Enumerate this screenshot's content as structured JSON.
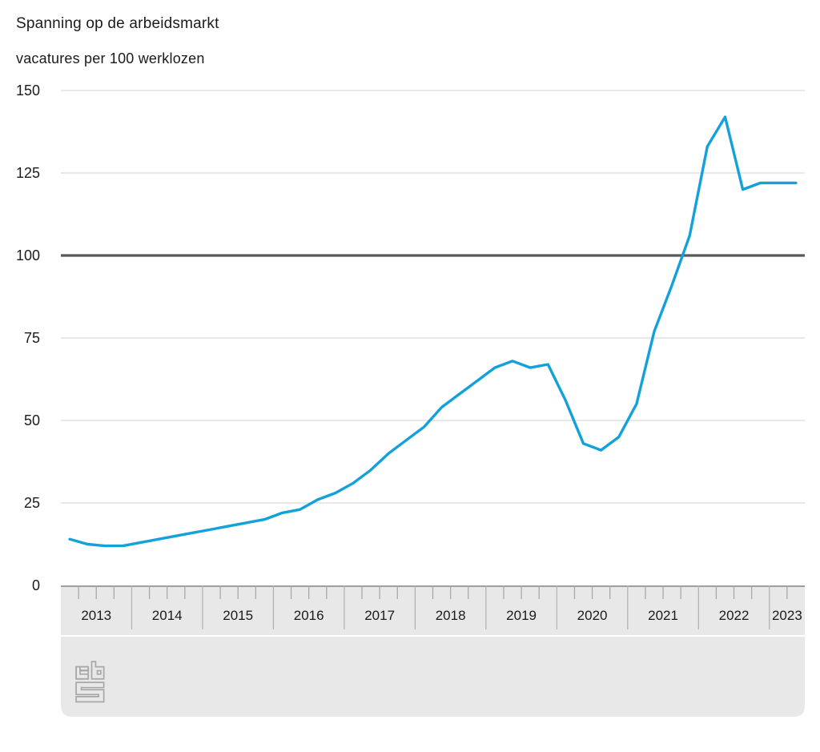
{
  "header": {
    "title": "Spanning op de arbeidsmarkt",
    "subtitle": "vacatures per 100 werklozen"
  },
  "chart_data": {
    "type": "line",
    "title": "Spanning op de arbeidsmarkt",
    "subtitle": "vacatures per 100 werklozen",
    "ylabel": "vacatures per 100 werklozen",
    "xlabel": "",
    "ylim": [
      0,
      150
    ],
    "y_ticks": [
      0,
      25,
      50,
      75,
      100,
      125,
      150
    ],
    "grid": true,
    "legend_position": "none",
    "reference_line": {
      "value": 100,
      "label": "100"
    },
    "x_years": [
      "2013",
      "2014",
      "2015",
      "2016",
      "2017",
      "2018",
      "2019",
      "2020",
      "2021",
      "2022",
      "2023"
    ],
    "quarters_in_last_year": 2,
    "periods": [
      "2013 Q1",
      "2013 Q2",
      "2013 Q3",
      "2013 Q4",
      "2014 Q1",
      "2014 Q2",
      "2014 Q3",
      "2014 Q4",
      "2015 Q1",
      "2015 Q2",
      "2015 Q3",
      "2015 Q4",
      "2016 Q1",
      "2016 Q2",
      "2016 Q3",
      "2016 Q4",
      "2017 Q1",
      "2017 Q2",
      "2017 Q3",
      "2017 Q4",
      "2018 Q1",
      "2018 Q2",
      "2018 Q3",
      "2018 Q4",
      "2019 Q1",
      "2019 Q2",
      "2019 Q3",
      "2019 Q4",
      "2020 Q1",
      "2020 Q2",
      "2020 Q3",
      "2020 Q4",
      "2021 Q1",
      "2021 Q2",
      "2021 Q3",
      "2021 Q4",
      "2022 Q1",
      "2022 Q2",
      "2022 Q3",
      "2022 Q4",
      "2023 Q1",
      "2023 Q2"
    ],
    "series": [
      {
        "name": "Spanning op de arbeidsmarkt",
        "values": [
          14,
          12.5,
          12,
          12,
          13,
          14,
          15,
          16,
          17,
          18,
          19,
          20,
          22,
          23,
          26,
          28,
          31,
          35,
          40,
          44,
          48,
          54,
          58,
          62,
          66,
          68,
          66,
          67,
          56,
          43,
          41,
          45,
          55,
          77,
          91,
          106,
          133,
          142,
          120,
          122,
          122,
          122
        ]
      }
    ],
    "colors": {
      "line": "#13a1db",
      "reference_line": "#58585a",
      "gridline": "#d9d9d9",
      "band": "#e8e8e8",
      "band_top_border": "#9f9f9f",
      "year_separator": "#b4b4b4",
      "quarter_tick": "#a9a9a9",
      "text": "#1b1b1b",
      "logo": "#a8a8a8"
    }
  },
  "footer": {
    "logo_name": "cbs-logo"
  }
}
